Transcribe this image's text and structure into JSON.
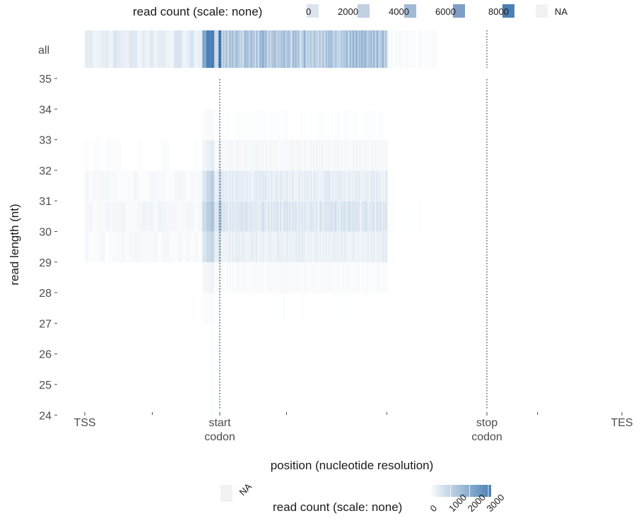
{
  "chart_data": {
    "type": "heatmap",
    "xlabel": "position (nucleotide resolution)",
    "ylabel": "read length (nt)",
    "x_landmarks": [
      {
        "label": "TSS",
        "pos": -200
      },
      {
        "label": "start\ncodon",
        "pos": 0
      },
      {
        "label": "stop\ncodon",
        "pos": 1600
      },
      {
        "label": "TES",
        "pos": 2400
      }
    ],
    "x_minor_ticks": [
      -100,
      400,
      1000,
      1900
    ],
    "y_rows": [
      "all",
      "35",
      "34",
      "33",
      "32",
      "31",
      "30",
      "29",
      "28",
      "27",
      "26",
      "25",
      "24"
    ],
    "y_tick_labels": [
      "all",
      "35",
      "34",
      "33",
      "32",
      "31",
      "30",
      "29",
      "28",
      "27",
      "26",
      "25",
      "24"
    ],
    "data_range_x": [
      -200,
      1300
    ],
    "top_legend": {
      "title": "read count (scale: none)",
      "breaks": [
        0,
        2000,
        4000,
        6000,
        8000
      ],
      "na_label": "NA",
      "colors": [
        "#dce4ef",
        "#c1d0e3",
        "#a2b9d6",
        "#7e9ec8",
        "#4a80b4"
      ]
    },
    "bottom_legend": {
      "title": "read count (scale: none)",
      "breaks": [
        0,
        1000,
        2000,
        3000
      ],
      "na_label": "NA",
      "gradient": [
        "#ffffff",
        "#4a80b4"
      ]
    },
    "na_color": "#f2f2f2",
    "row_intensity": {
      "all": 1.0,
      "35": 0.01,
      "34": 0.04,
      "33": 0.12,
      "32": 0.3,
      "31": 0.42,
      "30": 0.26,
      "29": 0.08,
      "28": 0.03,
      "27": 0.02,
      "26": 0.02,
      "25": 0.02,
      "24": 0.0
    },
    "peak_positions": [
      -20,
      0
    ],
    "grid": false
  }
}
